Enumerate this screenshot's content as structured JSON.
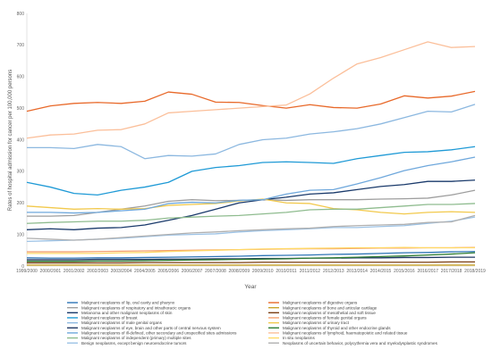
{
  "chart_data": {
    "type": "line",
    "xlabel": "Year",
    "ylabel": "Rates of hospital admission for cancer per 100,000 persons",
    "ylim": [
      0,
      800
    ],
    "yticks": [
      0,
      100,
      200,
      300,
      400,
      500,
      600,
      700,
      800
    ],
    "grid": false,
    "legend_position": "bottom",
    "x": [
      "1999/2000",
      "2000/2001",
      "2001/2002",
      "2002/2003",
      "2003/2004",
      "2004/2005",
      "2005/2006",
      "2006/2007",
      "2007/2008",
      "2008/2009",
      "2009/2010",
      "2010/2011",
      "2011/2012",
      "2012/2013",
      "2013/2014",
      "2014/2015",
      "2015/2016",
      "2016/2017",
      "2017/2018",
      "2018/2019"
    ],
    "series": [
      {
        "name": "Malignant neoplasms of lip, oral cavity and pharynx",
        "color": "#2e75b6",
        "values": [
          26,
          25,
          25,
          26,
          26,
          27,
          28,
          29,
          30,
          31,
          33,
          34,
          35,
          37,
          38,
          40,
          42,
          43,
          45,
          46
        ]
      },
      {
        "name": "Malignant neoplasms of digestive organs",
        "color": "#e8692a",
        "values": [
          490,
          507,
          515,
          518,
          515,
          522,
          551,
          544,
          519,
          518,
          508,
          500,
          511,
          502,
          500,
          513,
          539,
          532,
          538,
          553
        ]
      },
      {
        "name": "Malignant neoplasms of respiratory and intrathoracic organs",
        "color": "#9e9e9e",
        "values": [
          158,
          158,
          160,
          170,
          180,
          190,
          205,
          210,
          207,
          208,
          210,
          208,
          210,
          210,
          210,
          212,
          213,
          215,
          225,
          240
        ]
      },
      {
        "name": "Malignant neoplasms of bone and articular cartilage",
        "color": "#c9a227",
        "values": [
          3,
          3,
          3,
          3,
          3,
          3,
          3,
          3,
          3,
          3,
          3,
          3,
          3,
          3,
          3,
          3,
          3,
          3,
          3,
          3
        ]
      },
      {
        "name": "Melanoma and other malignant neoplasms of skin",
        "color": "#1a3a6b",
        "values": [
          115,
          118,
          115,
          120,
          122,
          130,
          145,
          160,
          180,
          200,
          210,
          218,
          228,
          232,
          242,
          252,
          258,
          268,
          268,
          272
        ]
      },
      {
        "name": "Malignant neoplasms of mesothelial and soft tissue",
        "color": "#7a3e14",
        "values": [
          10,
          10,
          10,
          10,
          10,
          11,
          11,
          11,
          11,
          11,
          12,
          12,
          12,
          12,
          12,
          12,
          12,
          12,
          13,
          13
        ]
      },
      {
        "name": "Malignant neoplasms of breast",
        "color": "#1f9ad6",
        "values": [
          265,
          250,
          230,
          225,
          240,
          250,
          265,
          300,
          312,
          318,
          328,
          330,
          328,
          325,
          340,
          350,
          360,
          362,
          368,
          378
        ]
      },
      {
        "name": "Malignant neoplasms of female genital organs",
        "color": "#f4a070",
        "values": [
          45,
          45,
          45,
          46,
          47,
          48,
          49,
          50,
          51,
          52,
          53,
          54,
          55,
          55,
          56,
          57,
          57,
          58,
          58,
          59
        ]
      },
      {
        "name": "Malignant neoplasms of male genital organs",
        "color": "#8cb8e0",
        "values": [
          375,
          375,
          372,
          385,
          378,
          340,
          350,
          348,
          355,
          385,
          400,
          405,
          418,
          425,
          435,
          450,
          470,
          490,
          488,
          512
        ]
      },
      {
        "name": "Malignant neoplasms of urinary tract",
        "color": "#f2c94c",
        "values": [
          190,
          185,
          180,
          182,
          180,
          182,
          192,
          195,
          198,
          206,
          212,
          200,
          198,
          182,
          178,
          170,
          165,
          170,
          172,
          170
        ]
      },
      {
        "name": "Malignant neoplasms of eye, brain and other parts of central nervous system",
        "color": "#203864",
        "values": [
          20,
          20,
          20,
          21,
          21,
          21,
          22,
          22,
          23,
          23,
          24,
          24,
          25,
          25,
          26,
          26,
          27,
          27,
          28,
          28
        ]
      },
      {
        "name": "Malignant neoplasms of thyroid and other endocrine glands",
        "color": "#2e7d32",
        "values": [
          15,
          15,
          15,
          16,
          16,
          17,
          18,
          19,
          20,
          21,
          22,
          23,
          25,
          26,
          28,
          30,
          32,
          35,
          38,
          42
        ]
      },
      {
        "name": "Malignant neoplasms of ill-defined, other secondary and unspecified sites admissions",
        "color": "#6fa8dc",
        "values": [
          170,
          170,
          168,
          170,
          175,
          180,
          198,
          202,
          200,
          208,
          210,
          228,
          240,
          242,
          260,
          280,
          302,
          318,
          330,
          345
        ]
      },
      {
        "name": "Malignant neoplasms of lymphoid, haematopoietic and related tissue",
        "color": "#fbbf9a",
        "values": [
          405,
          415,
          418,
          430,
          432,
          450,
          485,
          490,
          495,
          500,
          505,
          510,
          545,
          595,
          640,
          660,
          685,
          710,
          692,
          695
        ]
      },
      {
        "name": "Malignant neoplasms of independent (primary) multiple sites",
        "color": "#8fbc8f",
        "values": [
          135,
          138,
          140,
          142,
          142,
          145,
          152,
          155,
          158,
          160,
          165,
          170,
          178,
          180,
          180,
          185,
          190,
          195,
          195,
          198
        ]
      },
      {
        "name": "In situ neoplasms",
        "color": "#ffd966",
        "values": [
          40,
          40,
          40,
          40,
          42,
          43,
          46,
          48,
          50,
          52,
          54,
          55,
          56,
          57,
          58,
          58,
          59,
          58,
          58,
          58
        ]
      },
      {
        "name": "Benign neoplasms, except benign neuroendocrine tumors",
        "color": "#9dc3e6",
        "values": [
          78,
          80,
          82,
          85,
          88,
          93,
          98,
          100,
          102,
          108,
          112,
          115,
          118,
          122,
          122,
          125,
          128,
          135,
          142,
          155
        ]
      },
      {
        "name": "Neoplasms of uncertain behavior, polycythemia vera and myelodysplastic syndromes",
        "color": "#b0b0b0",
        "values": [
          88,
          85,
          82,
          85,
          90,
          95,
          100,
          105,
          108,
          112,
          115,
          118,
          120,
          125,
          128,
          130,
          132,
          138,
          140,
          160
        ]
      }
    ]
  }
}
